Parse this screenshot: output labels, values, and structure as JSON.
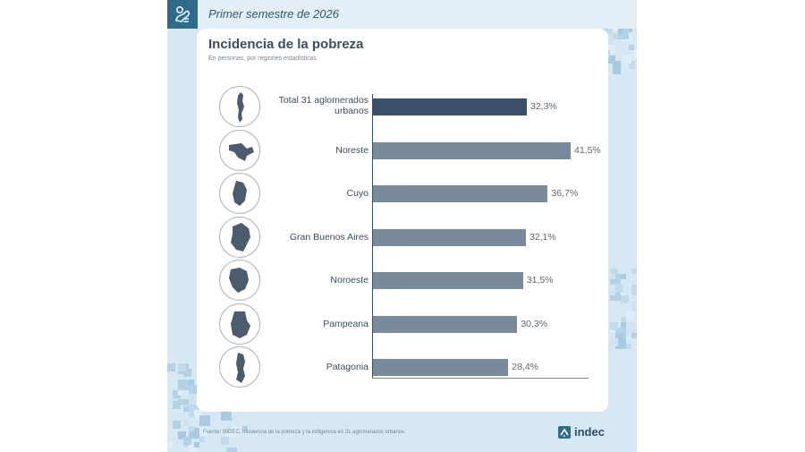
{
  "header": {
    "period": "Primer semestre de 2026",
    "logo_icon": "indec-symbol-icon"
  },
  "chart_data": {
    "type": "bar",
    "orientation": "horizontal",
    "title": "Incidencia de la pobreza",
    "subtitle": "En personas, por regiones estadísticas",
    "categories": [
      "Total 31 aglomerados urbanos",
      "Noreste",
      "Cuyo",
      "Gran Buenos Aires",
      "Noroeste",
      "Pampeana",
      "Patagonia"
    ],
    "values": [
      32.3,
      41.5,
      36.7,
      32.1,
      31.5,
      30.3,
      28.4
    ],
    "value_labels": [
      "32,3%",
      "41,5%",
      "36,7%",
      "32,1%",
      "31,5%",
      "30,3%",
      "28,4%"
    ],
    "unit": "%",
    "xlim": [
      0,
      46
    ],
    "colors": {
      "total": "#3a5068",
      "regions": "#788a9b"
    },
    "legend": "none",
    "grid": false
  },
  "source": "Fuente: INDEC. Incidencia de la pobreza y la indigencia en 31 aglomerados urbanos.",
  "brand": "indec",
  "colors": {
    "background": "#d6e8f4",
    "header_band": "#e4eff7",
    "logo_box": "#2f6c8c",
    "text_dark": "#3b4e60"
  }
}
